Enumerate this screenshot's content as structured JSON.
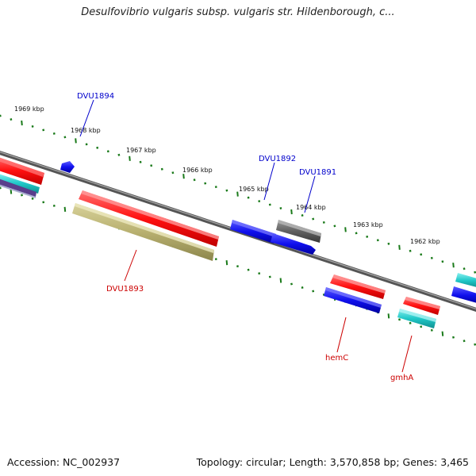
{
  "title": "Desulfovibrio vulgaris subsp. vulgaris str. Hildenborough, c...",
  "footer": {
    "accession": "Accession: NC_002937",
    "summary": "Topology: circular; Length: 3,570,858 bp; Genes: 3,465"
  },
  "kbp_labels": [
    "1969 kbp",
    "1968 kbp",
    "1967 kbp",
    "1966 kbp",
    "1965 kbp",
    "1964 kbp",
    "1963 kbp",
    "1962 kbp"
  ],
  "gene_labels": {
    "forward": [
      "DVU1894",
      "DVU1892",
      "DVU1891"
    ],
    "reverse": [
      "DVU1893",
      "hemC",
      "gmhA"
    ]
  },
  "colors": {
    "forward_label": "#0000cc",
    "reverse_label": "#cc0000",
    "tick": "#1a7a1a",
    "backbone": "#777777",
    "red": "#ff1a1a",
    "blue": "#1010ee",
    "olive": "#b8b070",
    "gray": "#606060",
    "cyan": "#20c8c8"
  }
}
